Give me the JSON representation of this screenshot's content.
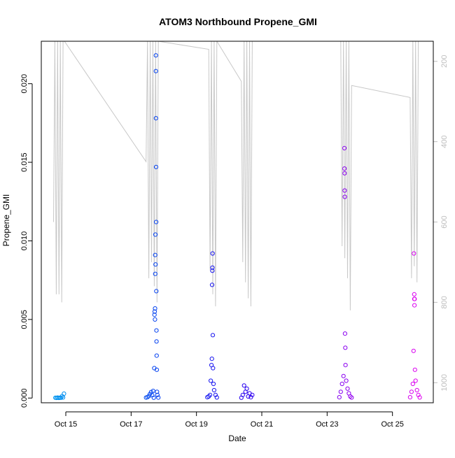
{
  "chart_data": {
    "type": "scatter",
    "title": "ATOM3 Northbound Propene_GMI",
    "xlabel": "Date",
    "ylabel": "Propene_GMI",
    "x_tick_labels": [
      "Oct 15",
      "Oct 17",
      "Oct 19",
      "Oct 21",
      "Oct 23",
      "Oct 25"
    ],
    "x_ticks": [
      "2017-10-15",
      "2017-10-17",
      "2017-10-19",
      "2017-10-21",
      "2017-10-23",
      "2017-10-25"
    ],
    "xlim": [
      "2017-10-14T06:00",
      "2017-10-26T06:00"
    ],
    "ylim": [
      -0.0003,
      0.0227
    ],
    "y_ticks": [
      0.0,
      0.005,
      0.01,
      0.015,
      0.02
    ],
    "y_tick_labels": [
      "0.000",
      "0.005",
      "0.010",
      "0.015",
      "0.020"
    ],
    "y2_ticks": [
      200,
      400,
      600,
      800,
      1000
    ],
    "y2_tick_labels": [
      "200",
      "400",
      "600",
      "800",
      "1000"
    ],
    "y2lim": [
      1050,
      150
    ],
    "y2_reversed": true,
    "grid": false,
    "colors": {
      "pressure": "#c8c8c8",
      "axis": "#000000",
      "right_axis": "#bebebe",
      "gradient": [
        "#00a0f0",
        "#0050f0",
        "#2000f0",
        "#8000f0",
        "#f000f0"
      ]
    },
    "series": [
      {
        "type": "scatter",
        "marker": "open-circle",
        "points": [
          [
            "2017-10-14T16:20",
            2e-05
          ],
          [
            "2017-10-14T17:10",
            1e-05
          ],
          [
            "2017-10-14T18:00",
            3e-05
          ],
          [
            "2017-10-14T18:50",
            1e-05
          ],
          [
            "2017-10-14T19:40",
            2e-05
          ],
          [
            "2017-10-14T20:30",
            2e-05
          ],
          [
            "2017-10-14T21:15",
            0.00012
          ],
          [
            "2017-10-14T22:00",
            4e-05
          ],
          [
            "2017-10-14T22:40",
            0.00028
          ],
          [
            "2017-10-17T11:00",
            3e-05
          ],
          [
            "2017-10-17T12:00",
            6e-05
          ],
          [
            "2017-10-17T13:00",
            0.00012
          ],
          [
            "2017-10-17T13:50",
            0.00025
          ],
          [
            "2017-10-17T14:40",
            0.00038
          ],
          [
            "2017-10-17T15:30",
            0.00018
          ],
          [
            "2017-10-17T16:10",
            0.00045
          ],
          [
            "2017-10-17T16:40",
            2e-05
          ],
          [
            "2017-10-17T17:00",
            0.0019
          ],
          [
            "2017-10-17T17:10",
            0.0053
          ],
          [
            "2017-10-17T17:20",
            0.0055
          ],
          [
            "2017-10-17T17:30",
            0.005
          ],
          [
            "2017-10-17T17:35",
            0.0057
          ],
          [
            "2017-10-17T17:40",
            0.0091
          ],
          [
            "2017-10-17T17:45",
            0.0079
          ],
          [
            "2017-10-17T17:50",
            0.0104
          ],
          [
            "2017-10-17T17:55",
            0.0085
          ],
          [
            "2017-10-17T18:10",
            0.0218
          ],
          [
            "2017-10-17T18:12",
            0.0208
          ],
          [
            "2017-10-17T18:15",
            0.0178
          ],
          [
            "2017-10-17T18:20",
            0.0147
          ],
          [
            "2017-10-17T18:25",
            0.0112
          ],
          [
            "2017-10-17T18:30",
            0.0068
          ],
          [
            "2017-10-17T18:35",
            0.0043
          ],
          [
            "2017-10-17T18:40",
            0.0036
          ],
          [
            "2017-10-17T18:45",
            0.0027
          ],
          [
            "2017-10-17T18:50",
            0.0018
          ],
          [
            "2017-10-17T19:00",
            0.0004
          ],
          [
            "2017-10-17T19:20",
            0.0002
          ],
          [
            "2017-10-17T20:00",
            3e-05
          ],
          [
            "2017-10-19T08:00",
            5e-05
          ],
          [
            "2017-10-19T09:00",
            0.0001
          ],
          [
            "2017-10-19T10:00",
            0.0002
          ],
          [
            "2017-10-19T10:30",
            0.0011
          ],
          [
            "2017-10-19T11:00",
            0.0021
          ],
          [
            "2017-10-19T11:20",
            0.0025
          ],
          [
            "2017-10-19T11:30",
            0.0072
          ],
          [
            "2017-10-19T11:40",
            0.0081
          ],
          [
            "2017-10-19T11:45",
            0.0083
          ],
          [
            "2017-10-19T11:50",
            0.0092
          ],
          [
            "2017-10-19T12:00",
            0.004
          ],
          [
            "2017-10-19T12:10",
            0.0019
          ],
          [
            "2017-10-19T12:30",
            0.0009
          ],
          [
            "2017-10-19T13:00",
            0.0005
          ],
          [
            "2017-10-19T14:00",
            0.0002
          ],
          [
            "2017-10-19T15:00",
            4e-05
          ],
          [
            "2017-10-20T09:00",
            2e-05
          ],
          [
            "2017-10-20T10:00",
            0.0002
          ],
          [
            "2017-10-20T11:00",
            0.0008
          ],
          [
            "2017-10-20T12:00",
            0.0004
          ],
          [
            "2017-10-20T13:00",
            0.0006
          ],
          [
            "2017-10-20T14:00",
            0.0001
          ],
          [
            "2017-10-20T15:00",
            0.0003
          ],
          [
            "2017-10-20T16:00",
            5e-05
          ],
          [
            "2017-10-20T17:00",
            0.0002
          ],
          [
            "2017-10-23T09:00",
            5e-05
          ],
          [
            "2017-10-23T10:00",
            0.0004
          ],
          [
            "2017-10-23T11:00",
            0.0009
          ],
          [
            "2017-10-23T12:00",
            0.0014
          ],
          [
            "2017-10-23T12:40",
            0.0159
          ],
          [
            "2017-10-23T12:45",
            0.0146
          ],
          [
            "2017-10-23T12:50",
            0.0143
          ],
          [
            "2017-10-23T12:55",
            0.0132
          ],
          [
            "2017-10-23T13:00",
            0.0128
          ],
          [
            "2017-10-23T13:10",
            0.0041
          ],
          [
            "2017-10-23T13:20",
            0.0032
          ],
          [
            "2017-10-23T13:30",
            0.0021
          ],
          [
            "2017-10-23T14:00",
            0.0011
          ],
          [
            "2017-10-23T15:00",
            0.0006
          ],
          [
            "2017-10-23T16:00",
            0.0003
          ],
          [
            "2017-10-23T17:00",
            0.0001
          ],
          [
            "2017-10-23T18:00",
            3e-05
          ],
          [
            "2017-10-25T13:00",
            5e-05
          ],
          [
            "2017-10-25T14:00",
            0.0004
          ],
          [
            "2017-10-25T15:00",
            0.0009
          ],
          [
            "2017-10-25T15:30",
            0.003
          ],
          [
            "2017-10-25T15:45",
            0.0092
          ],
          [
            "2017-10-25T16:00",
            0.0066
          ],
          [
            "2017-10-25T16:05",
            0.0063
          ],
          [
            "2017-10-25T16:10",
            0.0059
          ],
          [
            "2017-10-25T16:15",
            0.0063
          ],
          [
            "2017-10-25T16:30",
            0.0018
          ],
          [
            "2017-10-25T17:00",
            0.0011
          ],
          [
            "2017-10-25T18:00",
            0.0005
          ],
          [
            "2017-10-25T19:00",
            0.0002
          ],
          [
            "2017-10-25T20:00",
            4e-05
          ]
        ]
      },
      {
        "type": "line",
        "axis": "y2",
        "points": [
          [
            "2017-10-14T15:00",
            600
          ],
          [
            "2017-10-14T16:00",
            150
          ],
          [
            "2017-10-14T17:00",
            780
          ],
          [
            "2017-10-14T18:00",
            150
          ],
          [
            "2017-10-14T19:00",
            780
          ],
          [
            "2017-10-14T20:00",
            150
          ],
          [
            "2017-10-14T21:00",
            800
          ],
          [
            "2017-10-14T22:00",
            150
          ],
          [
            "2017-10-14T23:00",
            150
          ],
          [
            "2017-10-17T11:00",
            450
          ],
          [
            "2017-10-17T12:00",
            150
          ],
          [
            "2017-10-17T13:00",
            740
          ],
          [
            "2017-10-17T14:00",
            150
          ],
          [
            "2017-10-17T15:00",
            700
          ],
          [
            "2017-10-17T16:00",
            150
          ],
          [
            "2017-10-17T17:00",
            760
          ],
          [
            "2017-10-17T18:00",
            150
          ],
          [
            "2017-10-17T19:00",
            800
          ],
          [
            "2017-10-17T20:00",
            150
          ],
          [
            "2017-10-19T09:00",
            170
          ],
          [
            "2017-10-19T10:00",
            720
          ],
          [
            "2017-10-19T11:00",
            150
          ],
          [
            "2017-10-19T12:00",
            780
          ],
          [
            "2017-10-19T13:00",
            150
          ],
          [
            "2017-10-19T14:00",
            810
          ],
          [
            "2017-10-19T15:00",
            150
          ],
          [
            "2017-10-20T09:00",
            250
          ],
          [
            "2017-10-20T10:00",
            700
          ],
          [
            "2017-10-20T11:00",
            150
          ],
          [
            "2017-10-20T12:00",
            750
          ],
          [
            "2017-10-20T13:00",
            150
          ],
          [
            "2017-10-20T14:00",
            790
          ],
          [
            "2017-10-20T15:00",
            150
          ],
          [
            "2017-10-20T16:00",
            810
          ],
          [
            "2017-10-20T17:00",
            150
          ],
          [
            "2017-10-23T10:00",
            150
          ],
          [
            "2017-10-23T11:00",
            660
          ],
          [
            "2017-10-23T12:00",
            150
          ],
          [
            "2017-10-23T13:00",
            690
          ],
          [
            "2017-10-23T14:00",
            150
          ],
          [
            "2017-10-23T15:00",
            740
          ],
          [
            "2017-10-23T16:00",
            150
          ],
          [
            "2017-10-23T17:00",
            820
          ],
          [
            "2017-10-23T18:00",
            260
          ],
          [
            "2017-10-25T13:00",
            290
          ],
          [
            "2017-10-25T14:00",
            740
          ],
          [
            "2017-10-25T15:00",
            150
          ],
          [
            "2017-10-25T16:00",
            710
          ],
          [
            "2017-10-25T17:00",
            150
          ],
          [
            "2017-10-25T18:00",
            750
          ],
          [
            "2017-10-25T19:00",
            150
          ]
        ]
      }
    ]
  }
}
